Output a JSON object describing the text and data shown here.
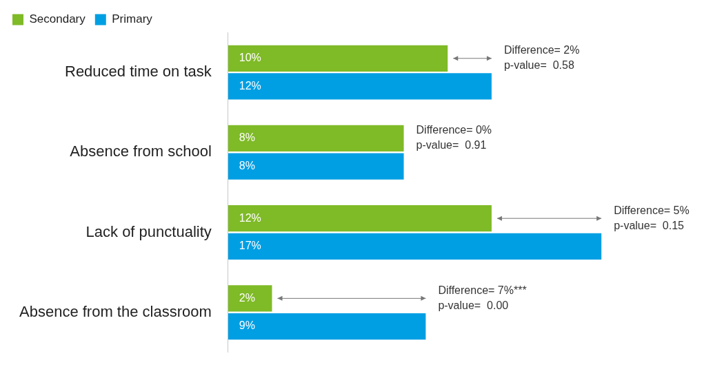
{
  "chart_data": {
    "type": "bar",
    "orientation": "horizontal",
    "categories": [
      "Reduced time on task",
      "Absence from school",
      "Lack of punctuality",
      "Absence from the classroom"
    ],
    "series": [
      {
        "name": "Secondary",
        "color": "#7fba27",
        "values": [
          10,
          8,
          12,
          2
        ],
        "value_labels": [
          "10%",
          "8%",
          "12%",
          "2%"
        ]
      },
      {
        "name": "Primary",
        "color": "#009fe3",
        "values": [
          12,
          8,
          17,
          9
        ],
        "value_labels": [
          "12%",
          "8%",
          "17%",
          "9%"
        ]
      }
    ],
    "tick_labels": "y",
    "grid": false,
    "legend": "top left",
    "annotations": [
      {
        "text": "Difference= 2%\np-value=  0.58",
        "x": 12,
        "y": "Reduced time on task"
      },
      {
        "text": "Difference= 0%\np-value=  0.91",
        "x": 8,
        "y": "Absence from school"
      },
      {
        "text": "Difference= 5%\np-value=  0.15",
        "x": 17,
        "y": "Lack of punctuality"
      },
      {
        "text": "Difference= 7%***\np-value=  0.00",
        "x": 9,
        "y": "Absence from the classroom"
      }
    ]
  }
}
